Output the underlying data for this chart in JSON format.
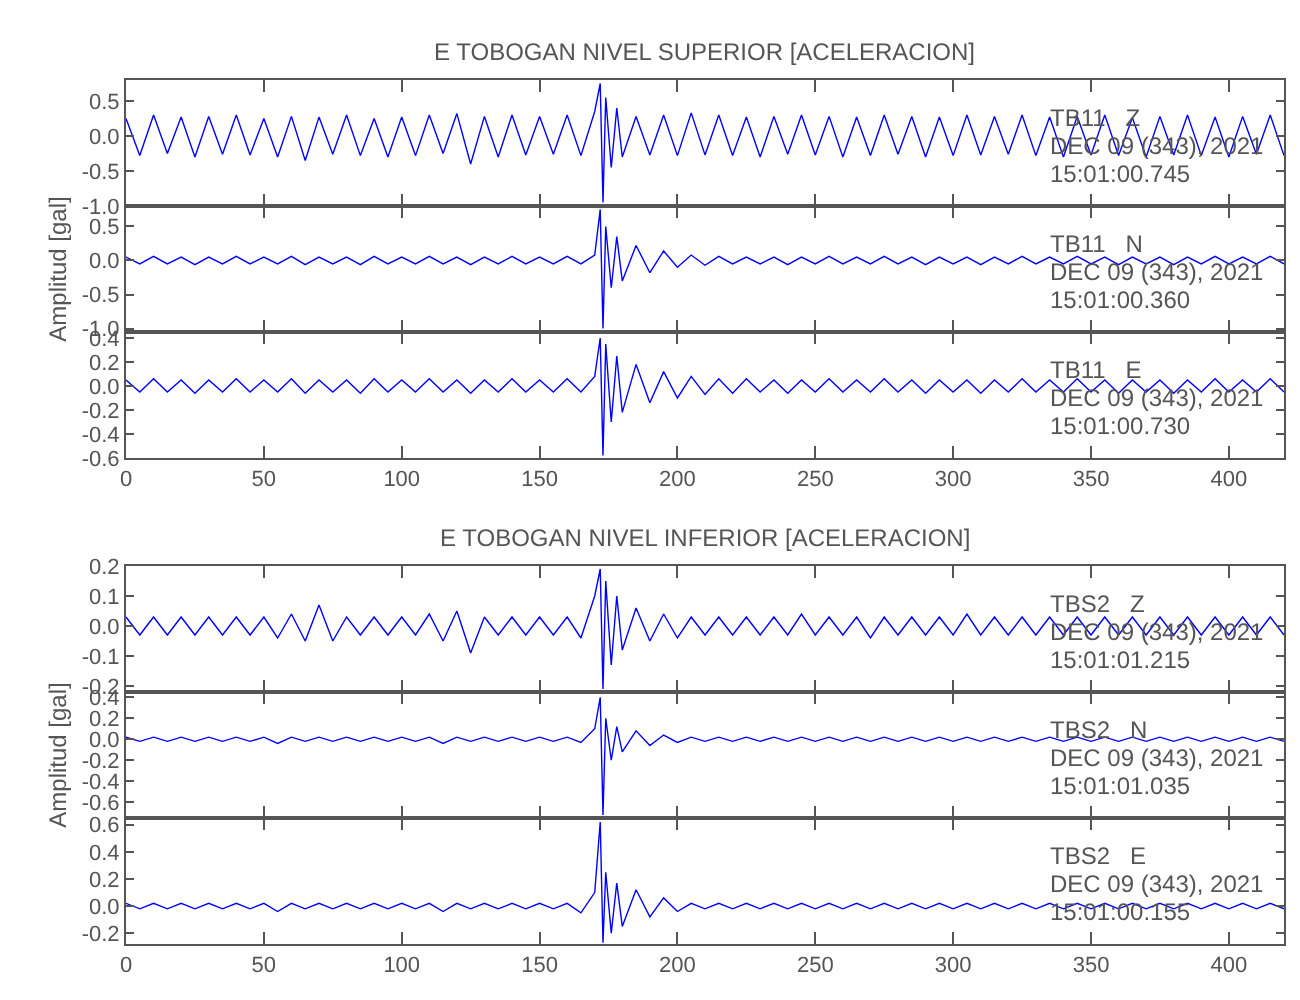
{
  "chart_data": [
    {
      "type": "line",
      "title": "E TOBOGAN NIVEL SUPERIOR [ACELERACION]",
      "tick_labels": "y",
      "x": [
        0,
        5,
        10,
        15,
        20,
        25,
        30,
        35,
        40,
        45,
        50,
        55,
        60,
        65,
        70,
        75,
        80,
        85,
        90,
        95,
        100,
        105,
        110,
        115,
        120,
        125,
        130,
        135,
        140,
        145,
        150,
        155,
        160,
        165,
        170,
        172,
        173,
        174,
        176,
        178,
        180,
        185,
        190,
        195,
        200,
        205,
        210,
        215,
        220,
        225,
        230,
        235,
        240,
        245,
        250,
        255,
        260,
        265,
        270,
        275,
        280,
        285,
        290,
        295,
        300,
        305,
        310,
        315,
        320,
        325,
        330,
        335,
        340,
        345,
        350,
        355,
        360,
        365,
        370,
        375,
        380,
        385,
        390,
        395,
        400,
        405,
        410,
        415,
        420
      ],
      "series": [
        {
          "color": "#0000ff",
          "values": [
            0.25,
            -0.28,
            0.3,
            -0.25,
            0.27,
            -0.3,
            0.28,
            -0.26,
            0.3,
            -0.27,
            0.25,
            -0.3,
            0.28,
            -0.35,
            0.27,
            -0.26,
            0.3,
            -0.28,
            0.25,
            -0.3,
            0.27,
            -0.28,
            0.3,
            -0.25,
            0.32,
            -0.4,
            0.28,
            -0.3,
            0.3,
            -0.27,
            0.28,
            -0.26,
            0.3,
            -0.28,
            0.35,
            0.75,
            -0.95,
            0.55,
            -0.45,
            0.4,
            -0.3,
            0.28,
            -0.27,
            0.3,
            -0.28,
            0.33,
            -0.27,
            0.3,
            -0.28,
            0.27,
            -0.3,
            0.28,
            -0.26,
            0.3,
            -0.27,
            0.28,
            -0.3,
            0.27,
            -0.28,
            0.3,
            -0.26,
            0.28,
            -0.3,
            0.27,
            -0.28,
            0.3,
            -0.27,
            0.28,
            -0.26,
            0.3,
            -0.28,
            0.27,
            -0.3,
            0.28,
            -0.27,
            0.3,
            -0.28,
            0.26,
            -0.3,
            0.28,
            -0.27,
            0.3,
            -0.28,
            0.27,
            -0.3,
            0.28,
            -0.26,
            0.3,
            -0.28
          ]
        }
      ],
      "xlim": [
        0,
        420
      ],
      "xticks": [
        0,
        50,
        100,
        150,
        200,
        250,
        300,
        350,
        400
      ],
      "ylim": [
        -1.0,
        0.8
      ],
      "yticks": [
        {
          "value": 0.5,
          "label": "0.5"
        },
        {
          "value": 0,
          "label": "0.0"
        },
        {
          "value": -0.5,
          "label": "-0.5"
        },
        {
          "value": -1.0,
          "label": "-1.0"
        }
      ],
      "annotations": [
        "TB11   Z",
        "DEC 09 (343), 2021",
        "15:01:00.745"
      ]
    },
    {
      "type": "line",
      "ylabel": "Amplitud [gal]",
      "tick_labels": "y",
      "x": [
        0,
        5,
        10,
        15,
        20,
        25,
        30,
        35,
        40,
        45,
        50,
        55,
        60,
        65,
        70,
        75,
        80,
        85,
        90,
        95,
        100,
        105,
        110,
        115,
        120,
        125,
        130,
        135,
        140,
        145,
        150,
        155,
        160,
        165,
        170,
        172,
        173,
        174,
        176,
        178,
        180,
        185,
        190,
        195,
        200,
        205,
        210,
        215,
        220,
        225,
        230,
        235,
        240,
        245,
        250,
        255,
        260,
        265,
        270,
        275,
        280,
        285,
        290,
        295,
        300,
        305,
        310,
        315,
        320,
        325,
        330,
        335,
        340,
        345,
        350,
        355,
        360,
        365,
        370,
        375,
        380,
        385,
        390,
        395,
        400,
        405,
        410,
        415,
        420
      ],
      "series": [
        {
          "color": "#0000ff",
          "values": [
            0.05,
            -0.05,
            0.06,
            -0.05,
            0.05,
            -0.06,
            0.05,
            -0.05,
            0.06,
            -0.05,
            0.05,
            -0.05,
            0.06,
            -0.06,
            0.05,
            -0.05,
            0.05,
            -0.06,
            0.06,
            -0.05,
            0.05,
            -0.05,
            0.06,
            -0.05,
            0.05,
            -0.06,
            0.05,
            -0.05,
            0.06,
            -0.05,
            0.05,
            -0.05,
            0.06,
            -0.05,
            0.08,
            0.75,
            -1.0,
            0.5,
            -0.4,
            0.35,
            -0.3,
            0.22,
            -0.18,
            0.14,
            -0.1,
            0.08,
            -0.07,
            0.06,
            -0.05,
            0.05,
            -0.05,
            0.05,
            -0.06,
            0.05,
            -0.05,
            0.06,
            -0.05,
            0.05,
            -0.05,
            0.06,
            -0.05,
            0.05,
            -0.06,
            0.05,
            -0.05,
            0.05,
            -0.06,
            0.05,
            -0.05,
            0.06,
            -0.05,
            0.05,
            -0.05,
            0.06,
            -0.05,
            0.05,
            -0.06,
            0.05,
            -0.05,
            0.05,
            -0.06,
            0.05,
            -0.05,
            0.06,
            -0.05,
            0.05,
            -0.05,
            0.06,
            -0.05
          ]
        }
      ],
      "xlim": [
        0,
        420
      ],
      "xticks": [
        0,
        50,
        100,
        150,
        200,
        250,
        300,
        350,
        400
      ],
      "ylim": [
        -1.05,
        0.8
      ],
      "yticks": [
        {
          "value": 0.5,
          "label": "0.5"
        },
        {
          "value": 0,
          "label": "0.0"
        },
        {
          "value": -0.5,
          "label": "-0.5"
        },
        {
          "value": -1.0,
          "label": "-1.0"
        }
      ],
      "annotations": [
        "TB11   N",
        "DEC 09 (343), 2021",
        "15:01:00.360"
      ]
    },
    {
      "type": "line",
      "x": [
        0,
        5,
        10,
        15,
        20,
        25,
        30,
        35,
        40,
        45,
        50,
        55,
        60,
        65,
        70,
        75,
        80,
        85,
        90,
        95,
        100,
        105,
        110,
        115,
        120,
        125,
        130,
        135,
        140,
        145,
        150,
        155,
        160,
        165,
        170,
        172,
        173,
        174,
        176,
        178,
        180,
        185,
        190,
        195,
        200,
        205,
        210,
        215,
        220,
        225,
        230,
        235,
        240,
        245,
        250,
        255,
        260,
        265,
        270,
        275,
        280,
        285,
        290,
        295,
        300,
        305,
        310,
        315,
        320,
        325,
        330,
        335,
        340,
        345,
        350,
        355,
        360,
        365,
        370,
        375,
        380,
        385,
        390,
        395,
        400,
        405,
        410,
        415,
        420
      ],
      "series": [
        {
          "color": "#0000ff",
          "values": [
            0.05,
            -0.05,
            0.06,
            -0.05,
            0.05,
            -0.06,
            0.05,
            -0.05,
            0.06,
            -0.05,
            0.05,
            -0.05,
            0.06,
            -0.06,
            0.05,
            -0.05,
            0.05,
            -0.06,
            0.06,
            -0.05,
            0.05,
            -0.05,
            0.06,
            -0.05,
            0.05,
            -0.06,
            0.05,
            -0.05,
            0.06,
            -0.05,
            0.05,
            -0.05,
            0.06,
            -0.05,
            0.08,
            0.4,
            -0.58,
            0.35,
            -0.3,
            0.25,
            -0.22,
            0.18,
            -0.14,
            0.12,
            -0.1,
            0.08,
            -0.07,
            0.06,
            -0.06,
            0.06,
            -0.05,
            0.05,
            -0.06,
            0.05,
            -0.05,
            0.06,
            -0.05,
            0.05,
            -0.05,
            0.06,
            -0.05,
            0.05,
            -0.06,
            0.05,
            -0.05,
            0.05,
            -0.06,
            0.05,
            -0.05,
            0.06,
            -0.05,
            0.05,
            -0.05,
            0.06,
            -0.05,
            0.05,
            -0.06,
            0.05,
            -0.05,
            0.05,
            -0.06,
            0.05,
            -0.05,
            0.06,
            -0.05,
            0.05,
            -0.05,
            0.06,
            -0.05
          ]
        }
      ],
      "xlim": [
        0,
        420
      ],
      "xticks": [
        0,
        50,
        100,
        150,
        200,
        250,
        300,
        350,
        400
      ],
      "ylim": [
        -0.6,
        0.45
      ],
      "yticks": [
        {
          "value": 0.4,
          "label": "0.4"
        },
        {
          "value": 0.2,
          "label": "0.2"
        },
        {
          "value": 0,
          "label": "0.0"
        },
        {
          "value": -0.2,
          "label": "-0.2"
        },
        {
          "value": -0.4,
          "label": "-0.4"
        },
        {
          "value": -0.6,
          "label": "-0.6"
        }
      ],
      "annotations": [
        "TB11   E",
        "DEC 09 (343), 2021",
        "15:01:00.730"
      ]
    },
    {
      "type": "line",
      "title": "E TOBOGAN NIVEL INFERIOR [ACELERACION]",
      "tick_labels": "y",
      "x": [
        0,
        5,
        10,
        15,
        20,
        25,
        30,
        35,
        40,
        45,
        50,
        55,
        60,
        65,
        70,
        75,
        80,
        85,
        90,
        95,
        100,
        105,
        110,
        115,
        120,
        125,
        130,
        135,
        140,
        145,
        150,
        155,
        160,
        165,
        170,
        172,
        173,
        174,
        176,
        178,
        180,
        185,
        190,
        195,
        200,
        205,
        210,
        215,
        220,
        225,
        230,
        235,
        240,
        245,
        250,
        255,
        260,
        265,
        270,
        275,
        280,
        285,
        290,
        295,
        300,
        305,
        310,
        315,
        320,
        325,
        330,
        335,
        340,
        345,
        350,
        355,
        360,
        365,
        370,
        375,
        380,
        385,
        390,
        395,
        400,
        405,
        410,
        415,
        420
      ],
      "series": [
        {
          "color": "#0000ff",
          "values": [
            0.03,
            -0.03,
            0.03,
            -0.03,
            0.03,
            -0.03,
            0.03,
            -0.03,
            0.03,
            -0.03,
            0.03,
            -0.04,
            0.04,
            -0.05,
            0.07,
            -0.05,
            0.03,
            -0.03,
            0.03,
            -0.03,
            0.03,
            -0.03,
            0.04,
            -0.05,
            0.05,
            -0.09,
            0.03,
            -0.03,
            0.03,
            -0.03,
            0.03,
            -0.03,
            0.03,
            -0.04,
            0.1,
            0.19,
            -0.21,
            0.15,
            -0.13,
            0.1,
            -0.08,
            0.06,
            -0.05,
            0.04,
            -0.04,
            0.03,
            -0.03,
            0.03,
            -0.03,
            0.03,
            -0.03,
            0.03,
            -0.03,
            0.04,
            -0.03,
            0.03,
            -0.03,
            0.03,
            -0.04,
            0.03,
            -0.03,
            0.03,
            -0.03,
            0.03,
            -0.03,
            0.04,
            -0.03,
            0.03,
            -0.03,
            0.03,
            -0.03,
            0.03,
            -0.03,
            0.03,
            -0.03,
            0.03,
            -0.03,
            0.03,
            -0.03,
            0.03,
            -0.03,
            0.03,
            -0.03,
            0.03,
            -0.03,
            0.03,
            -0.03,
            0.03,
            -0.03
          ]
        }
      ],
      "xlim": [
        0,
        420
      ],
      "xticks": [
        0,
        50,
        100,
        150,
        200,
        250,
        300,
        350,
        400
      ],
      "ylim": [
        -0.22,
        0.2
      ],
      "yticks": [
        {
          "value": 0.2,
          "label": "0.2"
        },
        {
          "value": 0.1,
          "label": "0.1"
        },
        {
          "value": 0,
          "label": "0.0"
        },
        {
          "value": -0.1,
          "label": "-0.1"
        },
        {
          "value": -0.2,
          "label": "-0.2"
        }
      ],
      "annotations": [
        "TBS2   Z",
        "DEC 09 (343), 2021",
        "15:01:01.215"
      ]
    },
    {
      "type": "line",
      "ylabel": "Amplitud [gal]",
      "tick_labels": "y",
      "x": [
        0,
        5,
        10,
        15,
        20,
        25,
        30,
        35,
        40,
        45,
        50,
        55,
        60,
        65,
        70,
        75,
        80,
        85,
        90,
        95,
        100,
        105,
        110,
        115,
        120,
        125,
        130,
        135,
        140,
        145,
        150,
        155,
        160,
        165,
        170,
        172,
        173,
        174,
        176,
        178,
        180,
        185,
        190,
        195,
        200,
        205,
        210,
        215,
        220,
        225,
        230,
        235,
        240,
        245,
        250,
        255,
        260,
        265,
        270,
        275,
        280,
        285,
        290,
        295,
        300,
        305,
        310,
        315,
        320,
        325,
        330,
        335,
        340,
        345,
        350,
        355,
        360,
        365,
        370,
        375,
        380,
        385,
        390,
        395,
        400,
        405,
        410,
        415,
        420
      ],
      "series": [
        {
          "color": "#0000ff",
          "values": [
            0.02,
            -0.02,
            0.02,
            -0.02,
            0.02,
            -0.02,
            0.02,
            -0.02,
            0.02,
            -0.02,
            0.02,
            -0.04,
            0.02,
            -0.02,
            0.02,
            -0.02,
            0.02,
            -0.02,
            0.02,
            -0.02,
            0.02,
            -0.02,
            0.02,
            -0.04,
            0.02,
            -0.02,
            0.02,
            -0.02,
            0.02,
            -0.02,
            0.02,
            -0.02,
            0.02,
            -0.03,
            0.1,
            0.4,
            -0.72,
            0.2,
            -0.2,
            0.12,
            -0.12,
            0.08,
            -0.06,
            0.04,
            -0.03,
            0.02,
            -0.02,
            0.02,
            -0.02,
            0.02,
            -0.02,
            0.02,
            -0.02,
            0.02,
            -0.02,
            0.02,
            -0.02,
            0.02,
            -0.02,
            0.02,
            -0.02,
            0.02,
            -0.02,
            0.02,
            -0.02,
            0.02,
            -0.02,
            0.02,
            -0.02,
            0.02,
            -0.02,
            0.02,
            -0.02,
            0.02,
            -0.02,
            0.02,
            -0.02,
            0.02,
            -0.02,
            0.02,
            -0.02,
            0.02,
            -0.02,
            0.02,
            -0.02,
            0.02,
            -0.02,
            0.02,
            -0.02
          ]
        }
      ],
      "xlim": [
        0,
        420
      ],
      "xticks": [
        0,
        50,
        100,
        150,
        200,
        250,
        300,
        350,
        400
      ],
      "ylim": [
        -0.75,
        0.45
      ],
      "yticks": [
        {
          "value": 0.4,
          "label": "0.4"
        },
        {
          "value": 0.2,
          "label": "0.2"
        },
        {
          "value": 0,
          "label": "0.0"
        },
        {
          "value": -0.2,
          "label": "-0.2"
        },
        {
          "value": -0.4,
          "label": "-0.4"
        },
        {
          "value": -0.6,
          "label": "-0.6"
        }
      ],
      "annotations": [
        "TBS2   N",
        "DEC 09 (343), 2021",
        "15:01:01.035"
      ]
    },
    {
      "type": "line",
      "x": [
        0,
        5,
        10,
        15,
        20,
        25,
        30,
        35,
        40,
        45,
        50,
        55,
        60,
        65,
        70,
        75,
        80,
        85,
        90,
        95,
        100,
        105,
        110,
        115,
        120,
        125,
        130,
        135,
        140,
        145,
        150,
        155,
        160,
        165,
        170,
        172,
        173,
        174,
        176,
        178,
        180,
        185,
        190,
        195,
        200,
        205,
        210,
        215,
        220,
        225,
        230,
        235,
        240,
        245,
        250,
        255,
        260,
        265,
        270,
        275,
        280,
        285,
        290,
        295,
        300,
        305,
        310,
        315,
        320,
        325,
        330,
        335,
        340,
        345,
        350,
        355,
        360,
        365,
        370,
        375,
        380,
        385,
        390,
        395,
        400,
        405,
        410,
        415,
        420
      ],
      "series": [
        {
          "color": "#0000ff",
          "values": [
            0.02,
            -0.02,
            0.02,
            -0.02,
            0.02,
            -0.02,
            0.02,
            -0.02,
            0.02,
            -0.02,
            0.02,
            -0.04,
            0.02,
            -0.02,
            0.02,
            -0.02,
            0.02,
            -0.02,
            0.02,
            -0.02,
            0.02,
            -0.02,
            0.02,
            -0.04,
            0.02,
            -0.02,
            0.02,
            -0.02,
            0.02,
            -0.02,
            0.02,
            -0.02,
            0.02,
            -0.05,
            0.1,
            0.62,
            -0.27,
            0.25,
            -0.2,
            0.17,
            -0.15,
            0.12,
            -0.08,
            0.06,
            -0.04,
            0.02,
            -0.02,
            0.02,
            -0.02,
            0.02,
            -0.02,
            0.02,
            -0.02,
            0.02,
            -0.02,
            0.02,
            -0.02,
            0.02,
            -0.02,
            0.02,
            -0.02,
            0.02,
            -0.02,
            0.02,
            -0.02,
            0.02,
            -0.02,
            0.02,
            -0.02,
            0.02,
            -0.02,
            0.02,
            -0.02,
            0.02,
            -0.02,
            0.02,
            -0.02,
            0.02,
            -0.02,
            0.02,
            -0.02,
            0.02,
            -0.02,
            0.02,
            -0.02,
            0.02,
            -0.02,
            0.02,
            -0.02
          ]
        }
      ],
      "xlim": [
        0,
        420
      ],
      "xticks": [
        0,
        50,
        100,
        150,
        200,
        250,
        300,
        350,
        400
      ],
      "ylim": [
        -0.28,
        0.65
      ],
      "yticks": [
        {
          "value": 0.6,
          "label": "0.6"
        },
        {
          "value": 0.4,
          "label": "0.4"
        },
        {
          "value": 0.2,
          "label": "0.2"
        },
        {
          "value": 0,
          "label": "0.0"
        },
        {
          "value": -0.2,
          "label": "-0.2"
        }
      ],
      "annotations": [
        "TBS2   E",
        "DEC 09 (343), 2021",
        "15:01:00.155"
      ]
    }
  ]
}
